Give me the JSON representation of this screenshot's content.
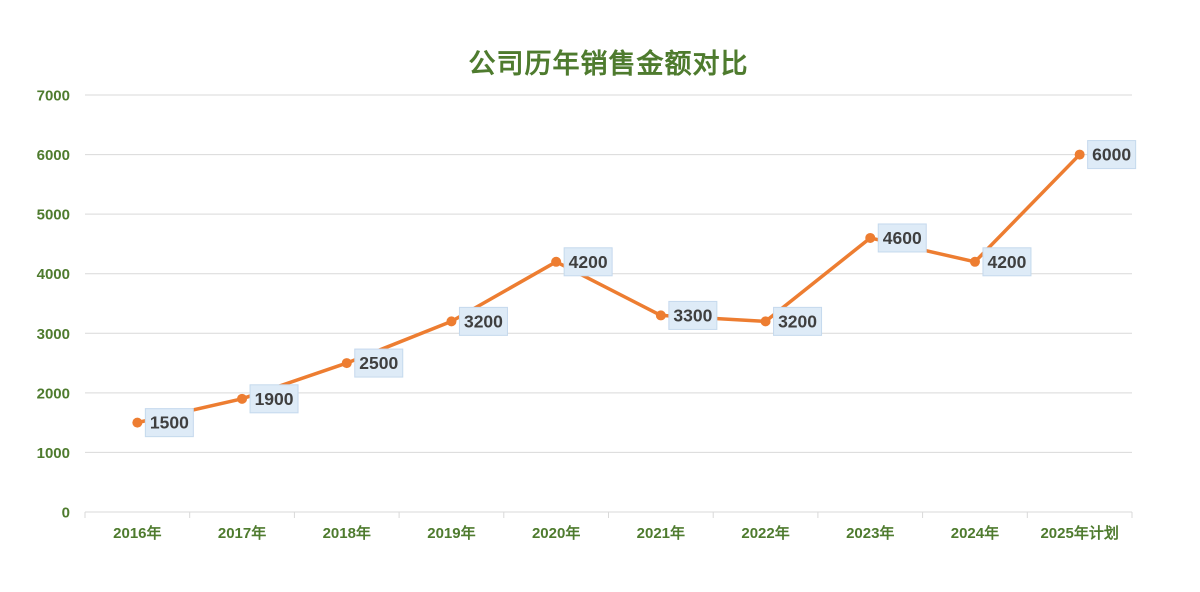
{
  "chart_data": {
    "type": "line",
    "title": "公司历年销售金额对比",
    "categories": [
      "2016年",
      "2017年",
      "2018年",
      "2019年",
      "2020年",
      "2021年",
      "2022年",
      "2023年",
      "2024年",
      "2025年计划"
    ],
    "values": [
      1500,
      1900,
      2500,
      3200,
      4200,
      3300,
      3200,
      4600,
      4200,
      6000
    ],
    "data_labels": [
      "1500",
      "1900",
      "2500",
      "3200",
      "4200",
      "3300",
      "3200",
      "4600",
      "4200",
      "6000"
    ],
    "xlabel": "",
    "ylabel": "",
    "ylim": [
      0,
      7000
    ],
    "y_tick_interval": 1000,
    "y_tick_labels": [
      "0",
      "1000",
      "2000",
      "3000",
      "4000",
      "5000",
      "6000",
      "7000"
    ],
    "grid": true,
    "legend_position": "none",
    "colors": {
      "line": "#ED7D31",
      "marker": "#ED7D31",
      "data_label_fill": "#DEEBF7",
      "data_label_border": "#C5D9ED",
      "data_label_text": "#3F3F3F",
      "axis_text": "#4E7B2E",
      "title_text": "#4E7B2E",
      "gridline": "#D9D9D9",
      "background": "#FFFFFF"
    }
  }
}
